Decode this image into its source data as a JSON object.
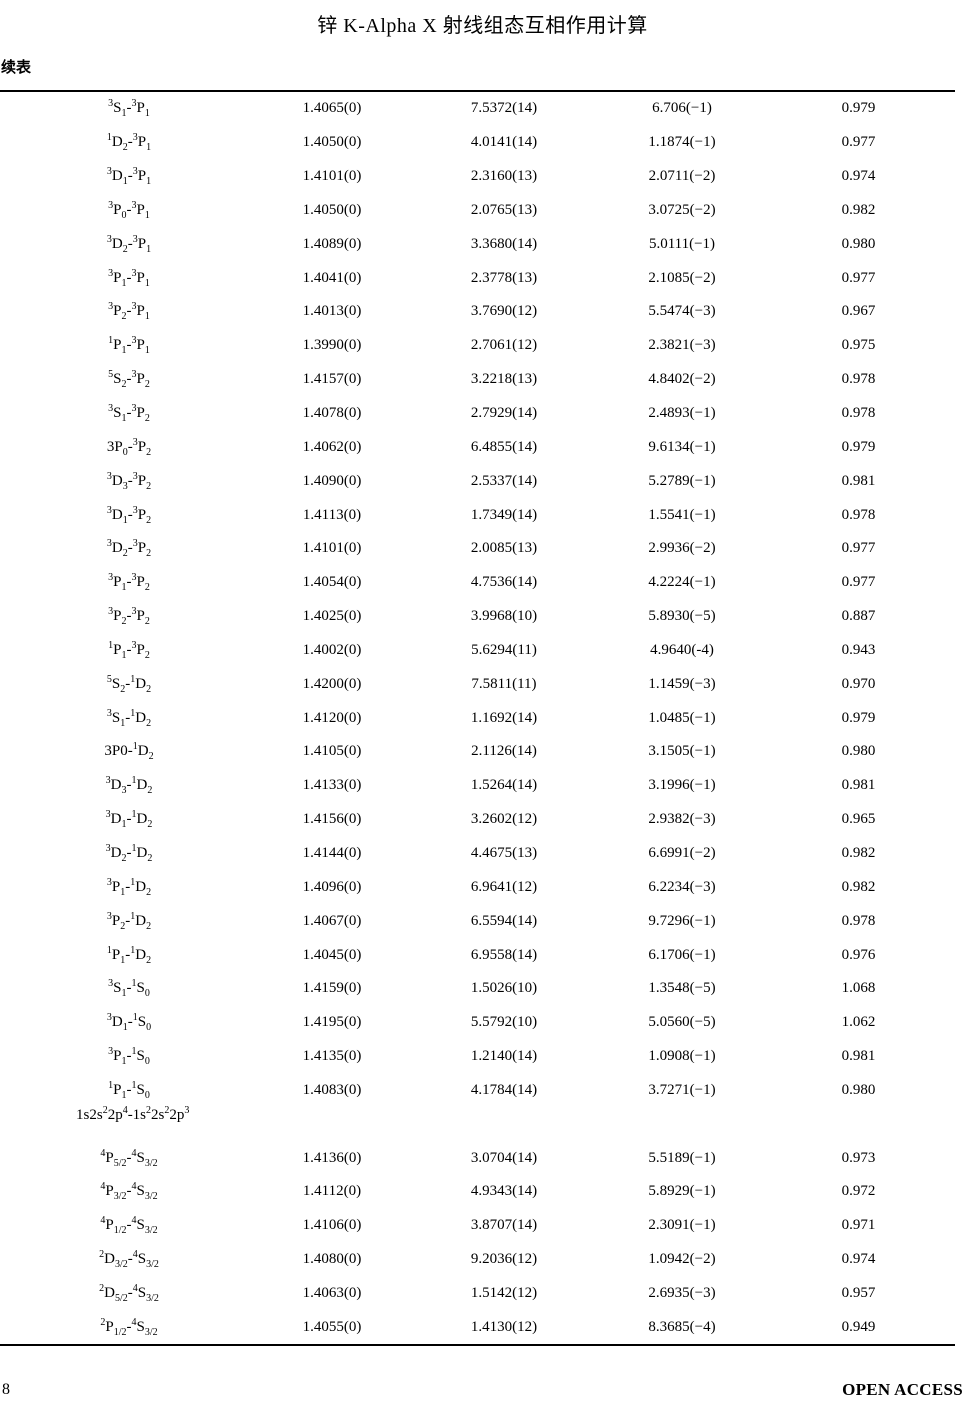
{
  "page": {
    "title": "锌 K-Alpha X 射线组态互相作用计算",
    "continued_table_label": "续表",
    "page_number": "8",
    "open_access_label": "OPEN ACCESS"
  },
  "table": {
    "rows": [
      {
        "type": "data",
        "label": "^{3}S_{1}-^{3}P_{1}",
        "v1": "1.4065(0)",
        "v2": "7.5372(14)",
        "v3": "6.706(−1)",
        "v4": "0.979"
      },
      {
        "type": "data",
        "label": "^{1}D_{2}-^{3}P_{1}",
        "v1": "1.4050(0)",
        "v2": "4.0141(14)",
        "v3": "1.1874(−1)",
        "v4": "0.977"
      },
      {
        "type": "data",
        "label": "^{3}D_{1}-^{3}P_{1}",
        "v1": "1.4101(0)",
        "v2": "2.3160(13)",
        "v3": "2.0711(−2)",
        "v4": "0.974"
      },
      {
        "type": "data",
        "label": "^{3}P_{0}-^{3}P_{1}",
        "v1": "1.4050(0)",
        "v2": "2.0765(13)",
        "v3": "3.0725(−2)",
        "v4": "0.982"
      },
      {
        "type": "data",
        "label": "^{3}D_{2}-^{3}P_{1}",
        "v1": "1.4089(0)",
        "v2": "3.3680(14)",
        "v3": "5.0111(−1)",
        "v4": "0.980"
      },
      {
        "type": "data",
        "label": "^{3}P_{1}-^{3}P_{1}",
        "v1": "1.4041(0)",
        "v2": "2.3778(13)",
        "v3": "2.1085(−2)",
        "v4": "0.977"
      },
      {
        "type": "data",
        "label": "^{3}P_{2}-^{3}P_{1}",
        "v1": "1.4013(0)",
        "v2": "3.7690(12)",
        "v3": "5.5474(−3)",
        "v4": "0.967"
      },
      {
        "type": "data",
        "label": "^{1}P_{1}-^{3}P_{1}",
        "v1": "1.3990(0)",
        "v2": "2.7061(12)",
        "v3": "2.3821(−3)",
        "v4": "0.975"
      },
      {
        "type": "data",
        "label": "^{5}S_{2}-^{3}P_{2}",
        "v1": "1.4157(0)",
        "v2": "3.2218(13)",
        "v3": "4.8402(−2)",
        "v4": "0.978"
      },
      {
        "type": "data",
        "label": "^{3}S_{1}-^{3}P_{2}",
        "v1": "1.4078(0)",
        "v2": "2.7929(14)",
        "v3": "2.4893(−1)",
        "v4": "0.978"
      },
      {
        "type": "data",
        "label": "3P_{0}-^{3}P_{2}",
        "v1": "1.4062(0)",
        "v2": "6.4855(14)",
        "v3": "9.6134(−1)",
        "v4": "0.979"
      },
      {
        "type": "data",
        "label": "^{3}D_{3}-^{3}P_{2}",
        "v1": "1.4090(0)",
        "v2": "2.5337(14)",
        "v3": "5.2789(−1)",
        "v4": "0.981"
      },
      {
        "type": "data",
        "label": "^{3}D_{1}-^{3}P_{2}",
        "v1": "1.4113(0)",
        "v2": "1.7349(14)",
        "v3": "1.5541(−1)",
        "v4": "0.978"
      },
      {
        "type": "data",
        "label": "^{3}D_{2}-^{3}P_{2}",
        "v1": "1.4101(0)",
        "v2": "2.0085(13)",
        "v3": "2.9936(−2)",
        "v4": "0.977"
      },
      {
        "type": "data",
        "label": "^{3}P_{1}-^{3}P_{2}",
        "v1": "1.4054(0)",
        "v2": "4.7536(14)",
        "v3": "4.2224(−1)",
        "v4": "0.977"
      },
      {
        "type": "data",
        "label": "^{3}P_{2}-^{3}P_{2}",
        "v1": "1.4025(0)",
        "v2": "3.9968(10)",
        "v3": "5.8930(−5)",
        "v4": "0.887"
      },
      {
        "type": "data",
        "label": "^{1}P_{1}-^{3}P_{2}",
        "v1": "1.4002(0)",
        "v2": "5.6294(11)",
        "v3": "4.9640(-4)",
        "v4": "0.943"
      },
      {
        "type": "data",
        "label": "^{5}S_{2}-^{1}D_{2}",
        "v1": "1.4200(0)",
        "v2": "7.5811(11)",
        "v3": "1.1459(−3)",
        "v4": "0.970"
      },
      {
        "type": "data",
        "label": "^{3}S_{1}-^{1}D_{2}",
        "v1": "1.4120(0)",
        "v2": "1.1692(14)",
        "v3": "1.0485(−1)",
        "v4": "0.979"
      },
      {
        "type": "data",
        "label": "3P0-^{1}D_{2}",
        "v1": "1.4105(0)",
        "v2": "2.1126(14)",
        "v3": "3.1505(−1)",
        "v4": "0.980"
      },
      {
        "type": "data",
        "label": "^{3}D_{3}-^{1}D_{2}",
        "v1": "1.4133(0)",
        "v2": "1.5264(14)",
        "v3": "3.1996(−1)",
        "v4": "0.981"
      },
      {
        "type": "data",
        "label": "^{3}D_{1}-^{1}D_{2}",
        "v1": "1.4156(0)",
        "v2": "3.2602(12)",
        "v3": "2.9382(−3)",
        "v4": "0.965"
      },
      {
        "type": "data",
        "label": "^{3}D_{2}-^{1}D_{2}",
        "v1": "1.4144(0)",
        "v2": "4.4675(13)",
        "v3": "6.6991(−2)",
        "v4": "0.982"
      },
      {
        "type": "data",
        "label": "^{3}P_{1}-^{1}D_{2}",
        "v1": "1.4096(0)",
        "v2": "6.9641(12)",
        "v3": "6.2234(−3)",
        "v4": "0.982"
      },
      {
        "type": "data",
        "label": "^{3}P_{2}-^{1}D_{2}",
        "v1": "1.4067(0)",
        "v2": "6.5594(14)",
        "v3": "9.7296(−1)",
        "v4": "0.978"
      },
      {
        "type": "data",
        "label": "^{1}P_{1}-^{1}D_{2}",
        "v1": "1.4045(0)",
        "v2": "6.9558(14)",
        "v3": "6.1706(−1)",
        "v4": "0.976"
      },
      {
        "type": "data",
        "label": "^{3}S_{1}-^{1}S_{0}",
        "v1": "1.4159(0)",
        "v2": "1.5026(10)",
        "v3": "1.3548(−5)",
        "v4": "1.068"
      },
      {
        "type": "data",
        "label": "^{3}D_{1}-^{1}S_{0}",
        "v1": "1.4195(0)",
        "v2": "5.5792(10)",
        "v3": "5.0560(−5)",
        "v4": "1.062"
      },
      {
        "type": "data",
        "label": "^{3}P_{1}-^{1}S_{0}",
        "v1": "1.4135(0)",
        "v2": "1.2140(14)",
        "v3": "1.0908(−1)",
        "v4": "0.981"
      },
      {
        "type": "data",
        "label": "^{1}P_{1}-^{1}S_{0}",
        "v1": "1.4083(0)",
        "v2": "4.1784(14)",
        "v3": "3.7271(−1)",
        "v4": "0.980"
      },
      {
        "type": "section",
        "label": "1s2s^{2}2p^{4}-1s^{2}2s^{2}2p^{3}"
      },
      {
        "type": "data",
        "label": "^{4}P_{5/2}-^{4}S_{3/2}",
        "v1": "1.4136(0)",
        "v2": "3.0704(14)",
        "v3": "5.5189(−1)",
        "v4": "0.973"
      },
      {
        "type": "data",
        "label": "^{4}P_{3/2}-^{4}S_{3/2}",
        "v1": "1.4112(0)",
        "v2": "4.9343(14)",
        "v3": "5.8929(−1)",
        "v4": "0.972"
      },
      {
        "type": "data",
        "label": "^{4}P_{1/2}-^{4}S_{3/2}",
        "v1": "1.4106(0)",
        "v2": "3.8707(14)",
        "v3": "2.3091(−1)",
        "v4": "0.971"
      },
      {
        "type": "data",
        "label": "^{2}D_{3/2}-^{4}S_{3/2}",
        "v1": "1.4080(0)",
        "v2": "9.2036(12)",
        "v3": "1.0942(−2)",
        "v4": "0.974"
      },
      {
        "type": "data",
        "label": "^{2}D_{5/2}-^{4}S_{3/2}",
        "v1": "1.4063(0)",
        "v2": "1.5142(12)",
        "v3": "2.6935(−3)",
        "v4": "0.957"
      },
      {
        "type": "data",
        "label": "^{2}P_{1/2}-^{4}S_{3/2}",
        "v1": "1.4055(0)",
        "v2": "1.4130(12)",
        "v3": "8.3685(−4)",
        "v4": "0.949"
      }
    ]
  }
}
